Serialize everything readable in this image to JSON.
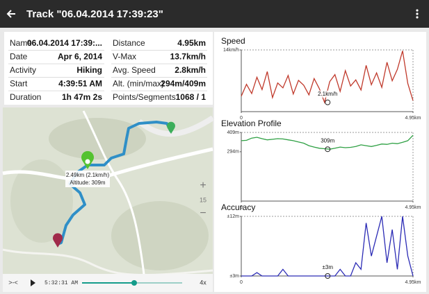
{
  "app_bar": {
    "title": "Track \"06.04.2014 17:39:23\""
  },
  "info": {
    "rows": [
      [
        "Name",
        "06.04.2014 17:39:...",
        "Distance",
        "4.95km"
      ],
      [
        "Date",
        "Apr 6, 2014",
        "V-Max",
        "13.7km/h"
      ],
      [
        "Activity",
        "Hiking",
        "Avg. Speed",
        "2.8km/h"
      ],
      [
        "Start",
        "4:39:51 AM",
        "Alt. (min/max)",
        "294m/409m"
      ],
      [
        "Duration",
        "1h 47m 2s",
        "Points/Segments",
        "1068 / 1"
      ]
    ]
  },
  "map": {
    "popup": [
      "2.49km (2.1km/h)",
      "Altitude: 309m"
    ],
    "zoom_in": "+",
    "zoom_level": "15",
    "zoom_out": "−",
    "loop": ">-<",
    "time": "5:32:31 AM",
    "speed": "4x"
  },
  "chart_data": [
    {
      "type": "line",
      "title": "Speed",
      "color": "#c0392b",
      "x": [
        0,
        0.15,
        0.3,
        0.45,
        0.6,
        0.75,
        0.9,
        1.05,
        1.2,
        1.35,
        1.5,
        1.65,
        1.8,
        1.95,
        2.1,
        2.25,
        2.4,
        2.55,
        2.7,
        2.85,
        3,
        3.15,
        3.3,
        3.45,
        3.6,
        3.75,
        3.9,
        4.05,
        4.2,
        4.35,
        4.5,
        4.65,
        4.8,
        4.95
      ],
      "values": [
        3.5,
        6.2,
        4.1,
        7.8,
        5,
        9.1,
        3.2,
        6.5,
        5.4,
        8.2,
        4,
        7.1,
        6,
        3.8,
        7.5,
        5.2,
        2.1,
        6.8,
        8.4,
        4.6,
        9.3,
        5.8,
        7.2,
        4.9,
        10.5,
        6.1,
        8.8,
        5.5,
        11.2,
        7,
        9.6,
        13.8,
        6.4,
        2.5
      ],
      "xlim": [
        0,
        4.95
      ],
      "xticks": [
        0,
        {
          "value": 4.95,
          "label": "4.95km"
        }
      ],
      "ylim": [
        0,
        14
      ],
      "yticks": [
        {
          "value": 14,
          "label": "14km/h"
        }
      ],
      "marker": {
        "x": 2.49,
        "y": 2.1,
        "label": "2.1km/h"
      }
    },
    {
      "type": "line",
      "title": "Elevation Profile",
      "color": "#2ea043",
      "x": [
        0,
        0.15,
        0.3,
        0.45,
        0.6,
        0.75,
        0.9,
        1.05,
        1.2,
        1.35,
        1.5,
        1.65,
        1.8,
        1.95,
        2.1,
        2.25,
        2.4,
        2.55,
        2.7,
        2.85,
        3,
        3.15,
        3.3,
        3.45,
        3.6,
        3.75,
        3.9,
        4.05,
        4.2,
        4.35,
        4.5,
        4.65,
        4.8,
        4.95
      ],
      "values": [
        360,
        362,
        375,
        380,
        372,
        365,
        368,
        372,
        370,
        365,
        360,
        352,
        345,
        330,
        322,
        315,
        312,
        309,
        315,
        322,
        318,
        320,
        325,
        335,
        330,
        325,
        332,
        340,
        338,
        345,
        342,
        350,
        360,
        392
      ],
      "xlim": [
        0,
        4.95
      ],
      "xticks": [
        0,
        {
          "value": 4.95,
          "label": "4.95km"
        }
      ],
      "ylim": [
        0,
        409
      ],
      "yticks": [
        {
          "value": 409,
          "label": "409m"
        },
        {
          "value": 294,
          "label": "294m"
        }
      ],
      "marker": {
        "x": 2.49,
        "y": 309,
        "label": "309m"
      }
    },
    {
      "type": "line",
      "title": "Accuracy",
      "color": "#2b2bb5",
      "x": [
        0,
        0.15,
        0.3,
        0.45,
        0.6,
        0.75,
        0.9,
        1.05,
        1.2,
        1.35,
        1.5,
        1.65,
        1.8,
        1.95,
        2.1,
        2.25,
        2.4,
        2.55,
        2.7,
        2.85,
        3,
        3.15,
        3.3,
        3.45,
        3.6,
        3.75,
        3.9,
        4.05,
        4.2,
        4.35,
        4.5,
        4.65,
        4.8,
        4.95
      ],
      "values": [
        3,
        3,
        3,
        3.5,
        3,
        3,
        3,
        3,
        4,
        3,
        3,
        3,
        3,
        3,
        3,
        3,
        3,
        3,
        3,
        4,
        3,
        3,
        5,
        4,
        11,
        6,
        9,
        12,
        5,
        10,
        4,
        12,
        6,
        3
      ],
      "xlim": [
        0,
        4.95
      ],
      "xticks": [
        0,
        {
          "value": 4.95,
          "label": "4.95km"
        }
      ],
      "ylim": [
        3,
        12
      ],
      "yticks": [
        {
          "value": 12,
          "label": "±12m"
        },
        {
          "value": 3,
          "label": "±3m"
        }
      ],
      "marker": {
        "x": 2.49,
        "y": 3,
        "label": "±3m"
      }
    }
  ]
}
